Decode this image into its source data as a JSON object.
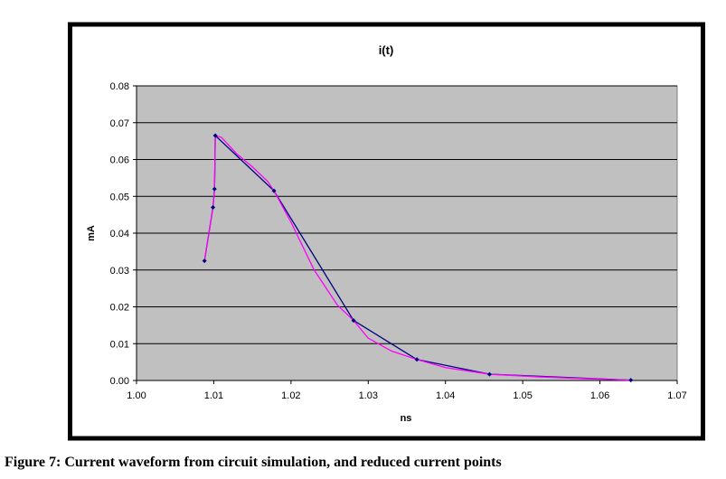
{
  "caption": "Figure 7: Current waveform from circuit simulation, and reduced current points",
  "chart_data": {
    "type": "line",
    "title": "i(t)",
    "xlabel": "ns",
    "ylabel": "mA",
    "xlim": [
      1.0,
      1.07
    ],
    "ylim": [
      0.0,
      0.08
    ],
    "x_ticks": [
      "1.00",
      "1.01",
      "1.02",
      "1.03",
      "1.04",
      "1.05",
      "1.06",
      "1.07"
    ],
    "y_ticks": [
      "0.00",
      "0.01",
      "0.02",
      "0.03",
      "0.04",
      "0.05",
      "0.06",
      "0.07",
      "0.08"
    ],
    "grid": true,
    "legend": "none",
    "plot_background": "#c0c0c0",
    "series": [
      {
        "color": "#000080",
        "markers": true,
        "x": [
          1.0088,
          1.0099,
          1.0101,
          1.0102,
          1.0178,
          1.0281,
          1.0363,
          1.0457,
          1.064
        ],
        "y": [
          0.0325,
          0.047,
          0.052,
          0.0665,
          0.0515,
          0.0163,
          0.0057,
          0.0017,
          0.0001
        ]
      },
      {
        "color": "#ff00ff",
        "markers": false,
        "x": [
          1.0088,
          1.0099,
          1.0101,
          1.0102,
          1.011,
          1.013,
          1.015,
          1.017,
          1.0178,
          1.02,
          1.023,
          1.026,
          1.0281,
          1.03,
          1.033,
          1.0363,
          1.04,
          1.0457,
          1.052,
          1.058,
          1.064
        ],
        "y": [
          0.0325,
          0.047,
          0.052,
          0.0665,
          0.066,
          0.0615,
          0.058,
          0.054,
          0.0515,
          0.043,
          0.03,
          0.0205,
          0.0163,
          0.0115,
          0.008,
          0.0057,
          0.0035,
          0.0017,
          0.001,
          0.0005,
          0.0001
        ]
      }
    ]
  }
}
